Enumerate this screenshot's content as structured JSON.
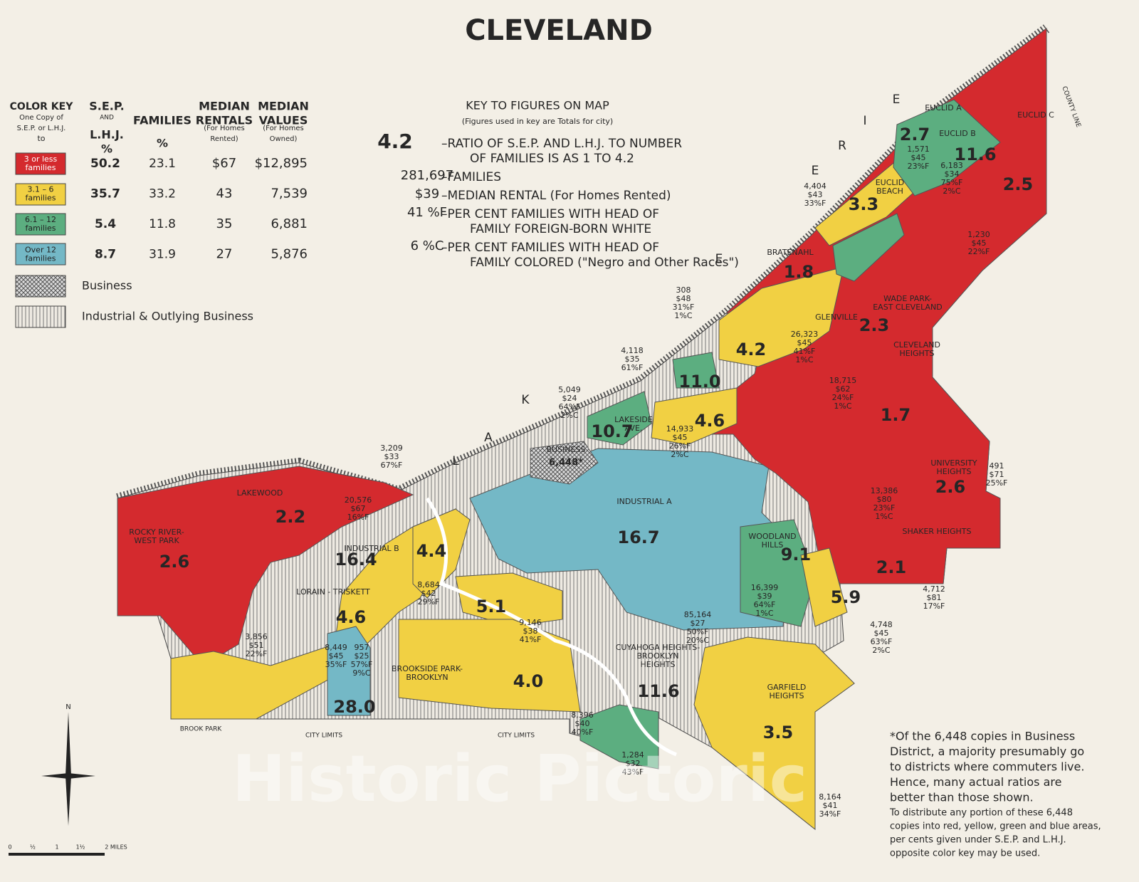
{
  "title": "CLEVELAND",
  "color_key": {
    "header_lines": {
      "key": [
        "COLOR KEY",
        "One Copy of",
        "S.E.P. or L.H.J.",
        "to"
      ],
      "sep": [
        "S.E.P.",
        "AND",
        "L.H.J.",
        "%"
      ],
      "families": [
        "FAMILIES",
        "%"
      ],
      "rentals": [
        "MEDIAN",
        "RENTALS",
        "(For Homes",
        "Rented)"
      ],
      "values": [
        "MEDIAN",
        "VALUES",
        "(For Homes",
        "Owned)"
      ]
    },
    "rows": [
      {
        "label": [
          "3 or less",
          "families"
        ],
        "sep": "50.2",
        "families": "23.1",
        "rental": "$67",
        "value": "$12,895"
      },
      {
        "label": [
          "3.1 – 6",
          "families"
        ],
        "sep": "35.7",
        "families": "33.2",
        "rental": "43",
        "value": "7,539"
      },
      {
        "label": [
          "6.1 – 12",
          "families"
        ],
        "sep": "5.4",
        "families": "11.8",
        "rental": "35",
        "value": "6,881"
      },
      {
        "label": [
          "Over 12",
          "families"
        ],
        "sep": "8.7",
        "families": "31.9",
        "rental": "27",
        "value": "5,876"
      }
    ],
    "business": "Business",
    "industrial": "Industrial & Outlying Business"
  },
  "figures_key": {
    "title": "KEY TO FIGURES ON MAP",
    "subtitle": "(Figures used in key are Totals for city)",
    "items": [
      {
        "figure": "4.2",
        "lines": [
          "–RATIO OF S.E.P. AND L.H.J. TO NUMBER",
          "OF FAMILIES IS AS 1 TO 4.2"
        ]
      },
      {
        "figure": "281,697",
        "lines": [
          "–FAMILIES"
        ]
      },
      {
        "figure": "$39",
        "lines": [
          "–MEDIAN RENTAL (For Homes Rented)"
        ]
      },
      {
        "figure": "41 %F",
        "lines": [
          "–PER CENT FAMILIES WITH HEAD OF",
          "FAMILY FOREIGN-BORN WHITE"
        ]
      },
      {
        "figure": "6 %C",
        "lines": [
          "–PER CENT FAMILIES WITH HEAD OF",
          "FAMILY COLORED (\"Negro and Other Races\")"
        ]
      }
    ]
  },
  "lake": [
    "L",
    "A",
    "K",
    "E",
    "E",
    "R",
    "I",
    "E"
  ],
  "districts": [
    {
      "name": [
        "EUCLID A"
      ],
      "ratio": "2.7",
      "stats": [
        "1,571",
        "$45",
        "23%F"
      ]
    },
    {
      "name": [
        "EUCLID B"
      ],
      "ratio": "11.6",
      "stats": [
        "6,183",
        "$34",
        "75%F",
        "2%C"
      ]
    },
    {
      "name": [
        "EUCLID C"
      ],
      "ratio": "2.5",
      "stats": [
        "1,230",
        "$45",
        "22%F"
      ]
    },
    {
      "name": [
        "EUCLID",
        "BEACH"
      ],
      "ratio": "3.3",
      "stats": [
        "4,404",
        "$43",
        "33%F"
      ]
    },
    {
      "name": [
        "BRATENAHL"
      ],
      "ratio": "1.8",
      "stats": [
        "308",
        "$48",
        "31%F",
        "1%C"
      ]
    },
    {
      "name": [
        "GLENVILLE"
      ],
      "ratio": "4.2",
      "stats": [
        "26,323",
        "$45",
        "41%F",
        "1%C"
      ]
    },
    {
      "name": [
        "WADE PARK-",
        "EAST CLEVELAND"
      ],
      "ratio": "2.3",
      "stats": []
    },
    {
      "name": [
        "CLEVELAND",
        "HEIGHTS"
      ],
      "ratio": "1.7",
      "stats": [
        "18,715",
        "$62",
        "24%F",
        "1%C"
      ]
    },
    {
      "name": [],
      "ratio": "11.0",
      "stats": [
        "4,118",
        "$35",
        "61%F"
      ]
    },
    {
      "name": [],
      "ratio": "4.6",
      "stats": [
        "14,933",
        "$45",
        "26%F",
        "2%C"
      ]
    },
    {
      "name": [
        "LAKESIDE",
        "AVE."
      ],
      "ratio": "10.7",
      "stats": [
        "5,049",
        "$24",
        "64%F",
        "2%C"
      ]
    },
    {
      "name": [
        "BUSINESS"
      ],
      "ratio": "6,448*",
      "stats": [
        "3,209",
        "$33",
        "67%F"
      ]
    },
    {
      "name": [
        "UNIVERSITY",
        "HEIGHTS"
      ],
      "ratio": "2.6",
      "stats": [
        "491",
        "$71",
        "25%F"
      ]
    },
    {
      "name": [
        "SHAKER HEIGHTS"
      ],
      "ratio": "2.1",
      "stats": [
        "4,712",
        "$81",
        "17%F"
      ]
    },
    {
      "name": [],
      "ratio": "",
      "stats": [
        "13,386",
        "$80",
        "23%F",
        "1%C"
      ]
    },
    {
      "name": [
        "LAKEWOOD"
      ],
      "ratio": "2.2",
      "stats": [
        "20,576",
        "$67",
        "16%F"
      ]
    },
    {
      "name": [
        "ROCKY RIVER-",
        "WEST PARK"
      ],
      "ratio": "2.6",
      "stats": [
        "3,856",
        "$51",
        "22%F"
      ]
    },
    {
      "name": [
        "INDUSTRIAL B"
      ],
      "ratio": "16.4",
      "stats": []
    },
    {
      "name": [],
      "ratio": "4.4",
      "stats": [
        "8,684",
        "$42",
        "29%F"
      ]
    },
    {
      "name": [
        "LORAIN - TRISKETT"
      ],
      "ratio": "4.6",
      "stats": [
        "8,449",
        "$45",
        "35%F"
      ]
    },
    {
      "name": [],
      "ratio": "28.0",
      "stats": [
        "957",
        "$25",
        "57%F",
        "9%C"
      ]
    },
    {
      "name": [],
      "ratio": "5.1",
      "stats": [
        "9,146",
        "$38",
        "41%F"
      ]
    },
    {
      "name": [
        "INDUSTRIAL A"
      ],
      "ratio": "16.7",
      "stats": [
        "85,164",
        "$27",
        "50%F",
        "20%C"
      ]
    },
    {
      "name": [
        "WOODLAND",
        "HILLS"
      ],
      "ratio": "9.1",
      "stats": [
        "16,399",
        "$39",
        "64%F",
        "1%C"
      ]
    },
    {
      "name": [],
      "ratio": "5.9",
      "stats": [
        "4,748",
        "$45",
        "63%F",
        "2%C"
      ]
    },
    {
      "name": [
        "BROOKSIDE PARK-",
        "BROOKLYN"
      ],
      "ratio": "4.0",
      "stats": [
        "8,396",
        "$40",
        "40%F"
      ]
    },
    {
      "name": [
        "CUYAHOGA HEIGHTS-",
        "BROOKLYN",
        "HEIGHTS"
      ],
      "ratio": "11.6",
      "stats": [
        "1,284",
        "$32",
        "43%F"
      ]
    },
    {
      "name": [
        "GARFIELD",
        "HEIGHTS"
      ],
      "ratio": "3.5",
      "stats": [
        "8,164",
        "$41",
        "34%F"
      ]
    }
  ],
  "map_labels": [
    "CITY LIMITS",
    "CITY LIMITS",
    "BROOK PARK",
    "COUNTY LINE"
  ],
  "footnote": {
    "main": [
      "*Of the 6,448 copies in Business",
      "District, a majority presumably go",
      "to districts where commuters live.",
      "Hence, many actual ratios are",
      "better than those shown."
    ],
    "note": [
      "To distribute any portion of these 6,448",
      "copies into red, yellow, green and blue areas,",
      "per cents given under S.E.P. and L.H.J.",
      "opposite color key may be used."
    ]
  },
  "compass": "N",
  "scale": [
    "0",
    "½",
    "1",
    "1½",
    "2 MILES"
  ],
  "watermark": "Historic Pictoric"
}
